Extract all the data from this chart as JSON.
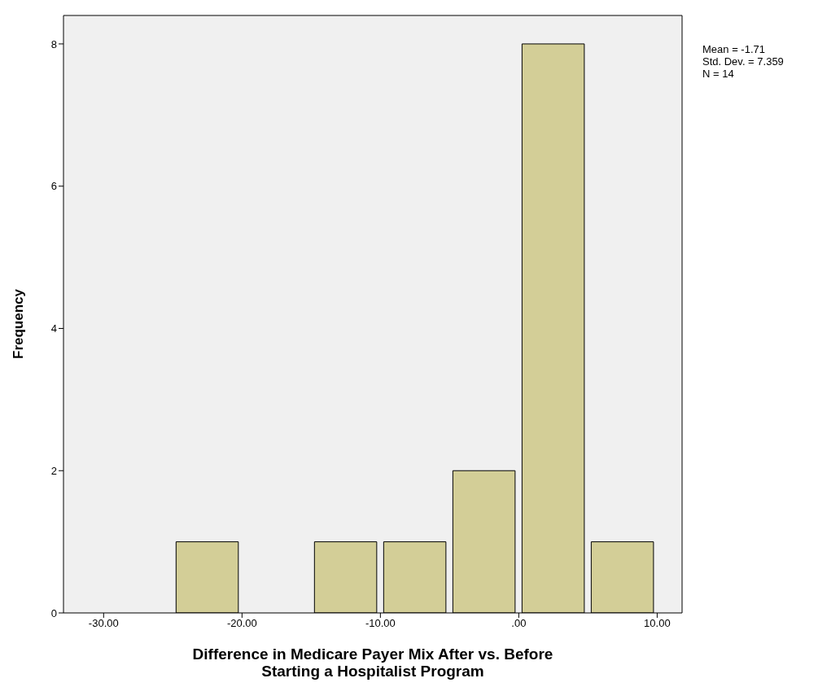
{
  "chart_data": {
    "type": "histogram",
    "xlabel": "Difference in Medicare Payer Mix After vs. Before Starting a Hospitalist Program",
    "ylabel": "Frequency",
    "bins": [
      -25,
      -20,
      -15,
      -10,
      -5,
      0,
      5,
      10
    ],
    "values": [
      1,
      0,
      1,
      1,
      2,
      8,
      1
    ],
    "color": "#d3ce97",
    "xlim": [
      -32.9,
      11.8
    ],
    "xticks": [
      {
        "value": -30,
        "label": "-30.00"
      },
      {
        "value": -20,
        "label": "-20.00"
      },
      {
        "value": -10,
        "label": "-10.00"
      },
      {
        "value": 0,
        "label": ".00"
      },
      {
        "value": 10,
        "label": "10.00"
      }
    ],
    "ylim": [
      0,
      8.4
    ],
    "yticks": [
      0,
      2,
      4,
      6,
      8
    ],
    "annotations": [
      "Mean = -1.71",
      "Std. Dev. = 7.359",
      "N = 14"
    ]
  }
}
